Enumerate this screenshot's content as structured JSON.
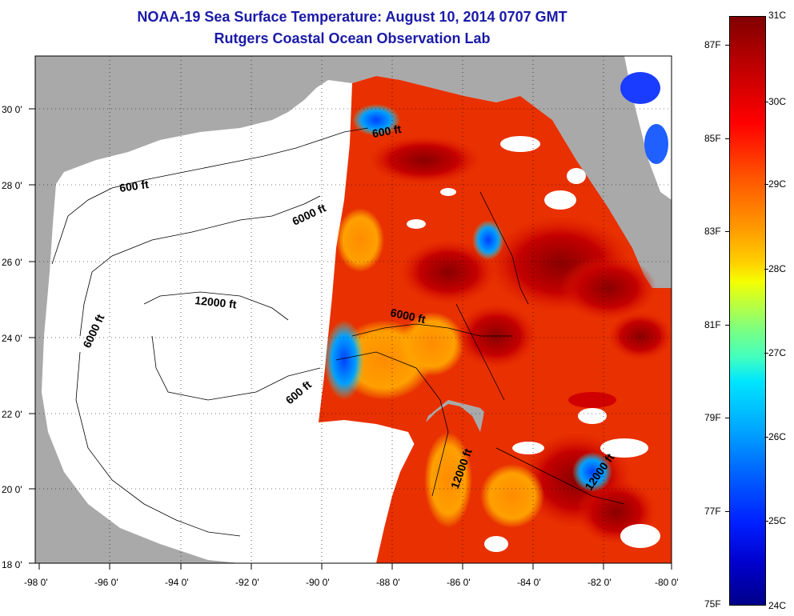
{
  "title": "NOAA-19 Sea Surface Temperature:  August 10, 2014 0707 GMT",
  "subtitle": "Rutgers Coastal Ocean Observation Lab",
  "axes": {
    "x_ticks": [
      "-98 0'",
      "-96 0'",
      "-94 0'",
      "-92 0'",
      "-90 0'",
      "-88 0'",
      "-86 0'",
      "-84 0'",
      "-82 0'",
      "-80 0'"
    ],
    "y_ticks": [
      "18 0'",
      "20 0'",
      "22 0'",
      "24 0'",
      "26 0'",
      "28 0'",
      "30 0'"
    ],
    "lon_range": [
      -98,
      -80
    ],
    "lat_range": [
      18,
      31
    ]
  },
  "contours": {
    "c600_north": "600 ft",
    "c6000_north": "6000 ft",
    "c12000": "12000 ft",
    "c6000_west": "6000 ft",
    "c600_east": "600 ft",
    "c6000_east": "6000 ft",
    "c600_ne": "600 ft",
    "c12000_south": "12000 ft",
    "c12000_carib": "12000 ft"
  },
  "colorbar": {
    "celsius": [
      "31C",
      "30C",
      "29C",
      "28C",
      "27C",
      "26C",
      "25C",
      "24C"
    ],
    "fahrenheit": [
      "87F",
      "85F",
      "83F",
      "81F",
      "79F",
      "77F",
      "75F"
    ],
    "range_c": [
      24,
      31
    ],
    "range_f": [
      75,
      87
    ]
  },
  "colors": {
    "land": "#a9a9a9",
    "title": "#1a1aa8",
    "no_data": "#ffffff"
  }
}
